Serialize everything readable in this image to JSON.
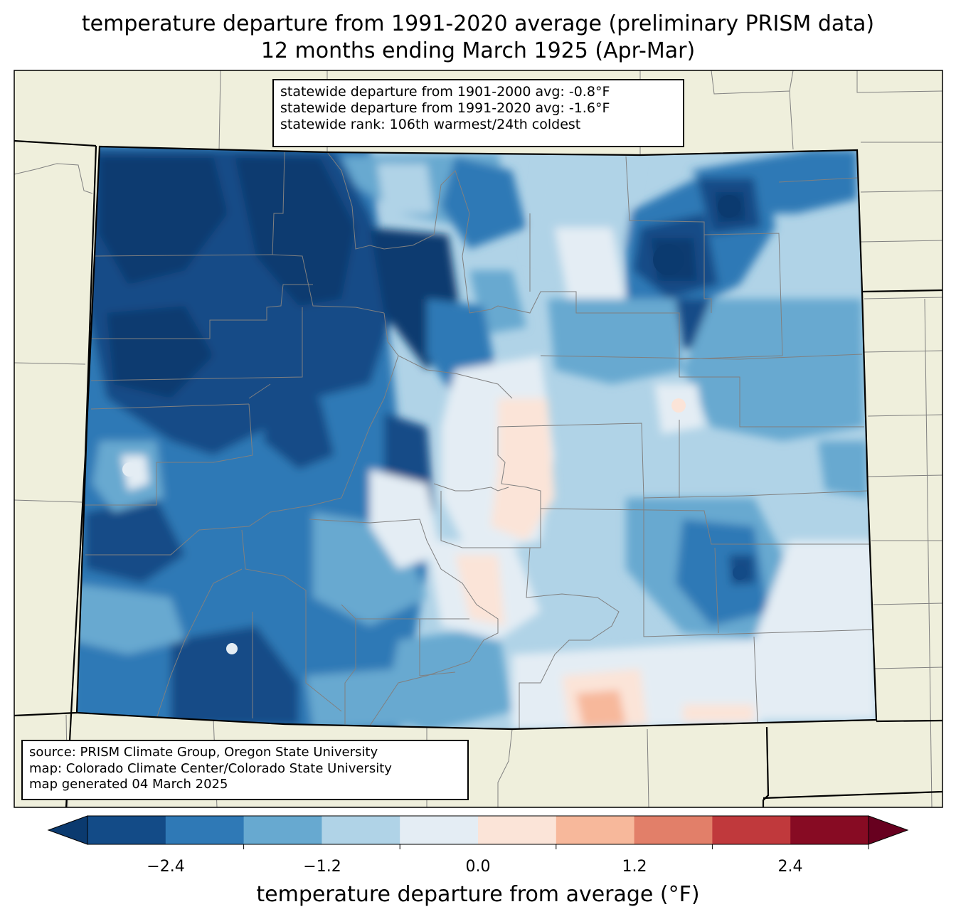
{
  "title": {
    "line1": "temperature departure from 1991-2020 average (preliminary PRISM data)",
    "line2": "12 months ending March 1925 (Apr-Mar)"
  },
  "stats": {
    "line1": "statewide departure from 1901-2000 avg: -0.8°F",
    "line2": "statewide departure from 1991-2020 avg: -1.6°F",
    "line3": "statewide rank: 106th warmest/24th coldest"
  },
  "source": {
    "line1": "source: PRISM Climate Group, Oregon State University",
    "line2": "map: Colorado Climate Center/Colorado State University",
    "line3": "map generated 04 March 2025"
  },
  "colorbar": {
    "label": "temperature departure from average (°F)",
    "ticks": [
      "−2.4",
      "−1.2",
      "0.0",
      "1.2",
      "2.4"
    ],
    "bins": [
      {
        "color": "#0b3a6f"
      },
      {
        "color": "#134b87"
      },
      {
        "color": "#2f79b6"
      },
      {
        "color": "#67a9d0"
      },
      {
        "color": "#b0d3e7"
      },
      {
        "color": "#e4edf4"
      },
      {
        "color": "#fbe4d8"
      },
      {
        "color": "#f7b89b"
      },
      {
        "color": "#e27f69"
      },
      {
        "color": "#c0393c"
      },
      {
        "color": "#870b23"
      },
      {
        "color": "#67001f"
      }
    ]
  },
  "colors": {
    "land": "#efefdc",
    "county_line": "#808080",
    "state_line": "#000000"
  }
}
